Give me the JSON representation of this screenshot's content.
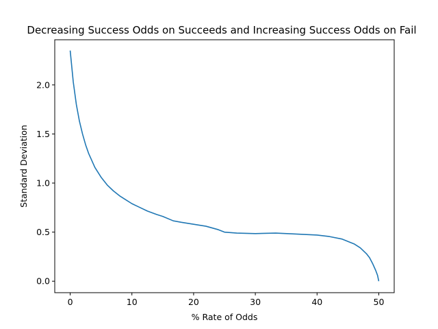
{
  "chart_data": {
    "type": "line",
    "title": "Decreasing Success Odds on Succeeds and Increasing Success Odds on Fail",
    "xlabel": "% Rate of Odds",
    "ylabel": "Standard Deviation",
    "xlim": [
      -2.5,
      52.5
    ],
    "ylim": [
      -0.117,
      2.46
    ],
    "xticks": [
      0,
      10,
      20,
      30,
      40,
      50
    ],
    "yticks": [
      0.0,
      0.5,
      1.0,
      1.5,
      2.0
    ],
    "xtick_labels": [
      "0",
      "10",
      "20",
      "30",
      "40",
      "50"
    ],
    "ytick_labels": [
      "0.0",
      "0.5",
      "1.0",
      "1.5",
      "2.0"
    ],
    "grid": false,
    "color": "#1f77b4",
    "series": [
      {
        "x": [
          0,
          0.5,
          1,
          1.5,
          2,
          2.5,
          3,
          4,
          5,
          6,
          7,
          8,
          9,
          10,
          11,
          12.5,
          14,
          15,
          16.7,
          18,
          20,
          22,
          24,
          25,
          27,
          30,
          33.3,
          36,
          40,
          42,
          44,
          46,
          47,
          48,
          48.5,
          49,
          49.5,
          49.8,
          50
        ],
        "y": [
          2.35,
          2.03,
          1.8,
          1.63,
          1.5,
          1.39,
          1.3,
          1.16,
          1.06,
          0.98,
          0.92,
          0.87,
          0.83,
          0.79,
          0.76,
          0.715,
          0.68,
          0.66,
          0.615,
          0.6,
          0.58,
          0.56,
          0.525,
          0.5,
          0.49,
          0.485,
          0.49,
          0.482,
          0.47,
          0.455,
          0.43,
          0.38,
          0.34,
          0.28,
          0.24,
          0.18,
          0.11,
          0.06,
          0.0
        ]
      }
    ]
  }
}
